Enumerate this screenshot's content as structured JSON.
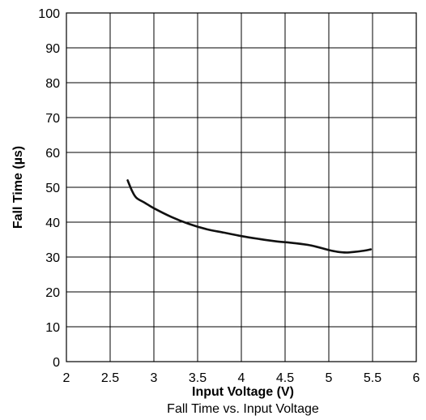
{
  "chart_data": {
    "type": "line",
    "title": "Fall Time vs. Input Voltage",
    "xlabel": "Input Voltage (V)",
    "ylabel": "Fall Time (µs)",
    "xlim": [
      2,
      6
    ],
    "ylim": [
      0,
      100
    ],
    "x_ticks": [
      "2",
      "2.5",
      "3",
      "3.5",
      "4",
      "4.5",
      "5",
      "5.5",
      "6"
    ],
    "y_ticks": [
      "0",
      "10",
      "20",
      "30",
      "40",
      "50",
      "60",
      "70",
      "80",
      "90",
      "100"
    ],
    "grid": true,
    "series": [
      {
        "x": [
          2.7,
          2.75,
          2.8,
          2.9,
          3.0,
          3.2,
          3.4,
          3.6,
          3.8,
          4.0,
          4.2,
          4.4,
          4.6,
          4.8,
          5.0,
          5.1,
          5.2,
          5.3,
          5.4,
          5.48
        ],
        "y": [
          52,
          49,
          47,
          45.5,
          44,
          41.5,
          39.5,
          38,
          37,
          36,
          35.2,
          34.5,
          34,
          33.3,
          32,
          31.5,
          31.3,
          31.5,
          31.8,
          32.2
        ]
      }
    ]
  }
}
